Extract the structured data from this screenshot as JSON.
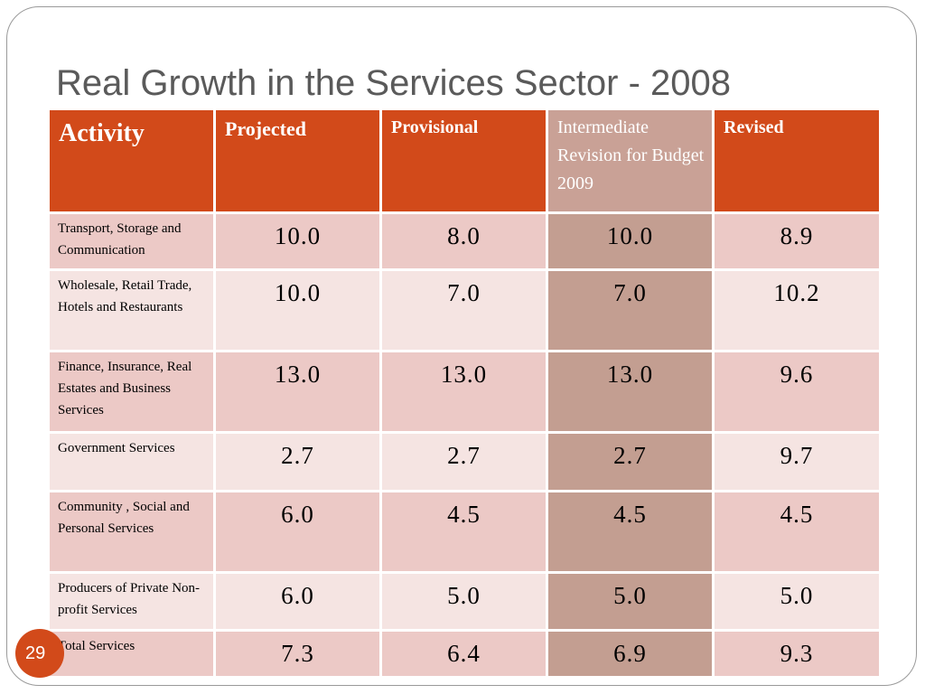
{
  "slide": {
    "title": "Real Growth in the Services Sector - 2008",
    "page_number": "29"
  },
  "table": {
    "headers": [
      "Activity",
      "Projected",
      "Provisional",
      "Intermediate Revision for Budget 2009",
      "Revised"
    ],
    "rows": [
      {
        "activity": "Transport, Storage and Communication",
        "projected": "10.0",
        "provisional": "8.0",
        "intermediate": "10.0",
        "revised": "8.9"
      },
      {
        "activity": "Wholesale, Retail Trade, Hotels and Restaurants",
        "projected": "10.0",
        "provisional": "7.0",
        "intermediate": "7.0",
        "revised": "10.2"
      },
      {
        "activity": "Finance, Insurance, Real Estates and Business Services",
        "projected": "13.0",
        "provisional": "13.0",
        "intermediate": "13.0",
        "revised": "9.6"
      },
      {
        "activity": "Government Services",
        "projected": "2.7",
        "provisional": "2.7",
        "intermediate": "2.7",
        "revised": "9.7"
      },
      {
        "activity": "Community , Social and Personal Services",
        "projected": "6.0",
        "provisional": "4.5",
        "intermediate": "4.5",
        "revised": "4.5"
      },
      {
        "activity": "Producers of Private Non-profit Services",
        "projected": "6.0",
        "provisional": "5.0",
        "intermediate": "5.0",
        "revised": "5.0"
      },
      {
        "activity": "Total Services",
        "projected": "7.3",
        "provisional": "6.4",
        "intermediate": "6.9",
        "revised": "9.3"
      }
    ]
  },
  "colors": {
    "header_accent": "#d24a1a",
    "highlight_column_header": "#c9a196",
    "highlight_column_cells": "#c39e91",
    "row_band_dark": "#ecc9c6",
    "row_band_light": "#f5e4e2",
    "title_text": "#5a5a5a"
  }
}
